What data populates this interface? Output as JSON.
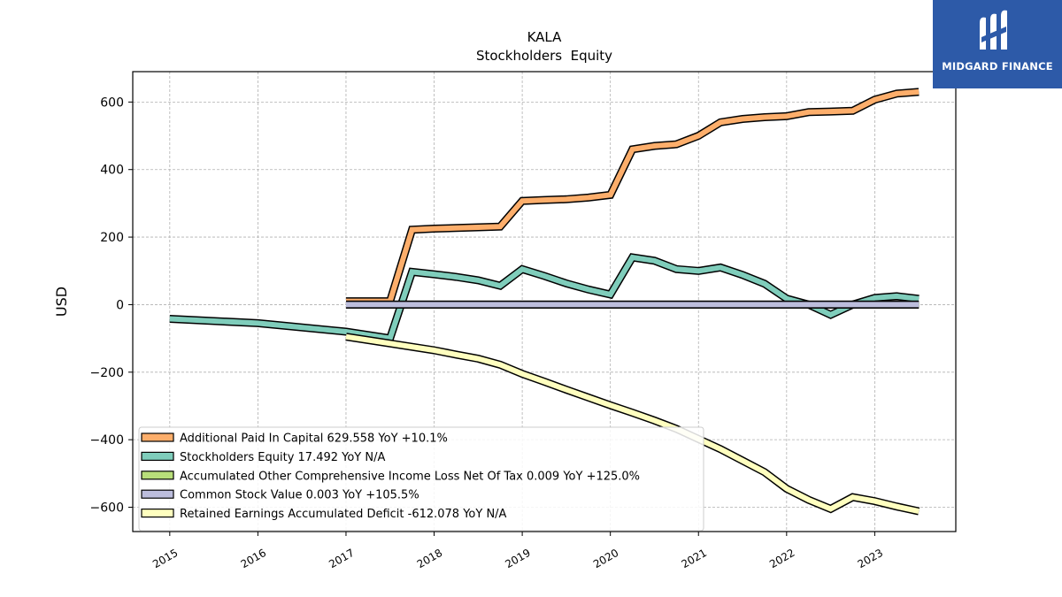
{
  "brand": {
    "name": "MIDGARD FINANCE",
    "color": "#2d5aa8"
  },
  "chart_data": {
    "type": "line",
    "title": "KALA",
    "subtitle": "Stockholders  Equity",
    "ylabel": "USD",
    "xlabel": "",
    "xlim": [
      2014.58,
      2023.92
    ],
    "ylim": [
      -672,
      690
    ],
    "yticks": [
      -600,
      -400,
      -200,
      0,
      200,
      400,
      600
    ],
    "ytick_labels": [
      "−600",
      "−400",
      "−200",
      "0",
      "200",
      "400",
      "600"
    ],
    "xticks": [
      2015,
      2016,
      2017,
      2018,
      2019,
      2020,
      2021,
      2022,
      2023
    ],
    "xtick_labels": [
      "2015",
      "2016",
      "2017",
      "2018",
      "2019",
      "2020",
      "2021",
      "2022",
      "2023"
    ],
    "grid": true,
    "legend_position": "lower-left",
    "series": [
      {
        "name": "Additional Paid In Capital",
        "legend": "Additional Paid In Capital  629.558 YoY +10.1%",
        "color": "#fdae6b",
        "x": [
          2017.0,
          2017.5,
          2017.75,
          2018.0,
          2018.25,
          2018.5,
          2018.75,
          2019.0,
          2019.25,
          2019.5,
          2019.75,
          2020.0,
          2020.25,
          2020.5,
          2020.75,
          2021.0,
          2021.25,
          2021.5,
          2021.75,
          2022.0,
          2022.25,
          2022.5,
          2022.75,
          2023.0,
          2023.25,
          2023.5
        ],
        "y": [
          10,
          10,
          222,
          225,
          227,
          229,
          231,
          307,
          310,
          312,
          317,
          325,
          460,
          470,
          475,
          500,
          540,
          550,
          555,
          558,
          570,
          572,
          574,
          607,
          625,
          630
        ]
      },
      {
        "name": "Stockholders Equity",
        "legend": "Stockholders Equity  17.492 YoY N/A",
        "color": "#7fcdbb",
        "x": [
          2015.0,
          2016.0,
          2017.0,
          2017.5,
          2017.75,
          2018.0,
          2018.25,
          2018.5,
          2018.75,
          2019.0,
          2019.25,
          2019.5,
          2019.75,
          2020.0,
          2020.25,
          2020.5,
          2020.75,
          2021.0,
          2021.25,
          2021.5,
          2021.75,
          2022.0,
          2022.25,
          2022.5,
          2022.75,
          2023.0,
          2023.25,
          2023.5
        ],
        "y": [
          -42,
          -55,
          -80,
          -100,
          97,
          90,
          82,
          72,
          56,
          105,
          85,
          63,
          45,
          30,
          140,
          130,
          105,
          100,
          110,
          88,
          62,
          18,
          0,
          -30,
          0,
          20,
          25,
          17
        ]
      },
      {
        "name": "Accumulated Other Comprehensive Income Loss Net Of Tax",
        "legend": "Accumulated Other Comprehensive Income Loss Net Of Tax  0.009 YoY +125.0%",
        "color": "#b8de7a",
        "x": [
          2017.0,
          2023.5
        ],
        "y": [
          0,
          0
        ]
      },
      {
        "name": "Common Stock Value",
        "legend": "Common Stock Value  0.003 YoY +105.5%",
        "color": "#bcbddc",
        "x": [
          2017.0,
          2023.5
        ],
        "y": [
          0,
          0
        ]
      },
      {
        "name": "Retained Earnings Accumulated Deficit",
        "legend": "Retained Earnings Accumulated Deficit  -612.078 YoY N/A",
        "color": "#ffffbf",
        "x": [
          2017.0,
          2017.5,
          2018.0,
          2018.25,
          2018.5,
          2018.75,
          2019.0,
          2019.25,
          2019.5,
          2019.75,
          2020.0,
          2020.25,
          2020.5,
          2020.75,
          2021.0,
          2021.25,
          2021.5,
          2021.75,
          2022.0,
          2022.25,
          2022.5,
          2022.75,
          2023.0,
          2023.25,
          2023.5
        ],
        "y": [
          -95,
          -115,
          -135,
          -148,
          -160,
          -178,
          -205,
          -228,
          -252,
          -275,
          -298,
          -320,
          -343,
          -368,
          -398,
          -428,
          -462,
          -496,
          -545,
          -578,
          -605,
          -570,
          -582,
          -598,
          -612
        ]
      }
    ]
  }
}
